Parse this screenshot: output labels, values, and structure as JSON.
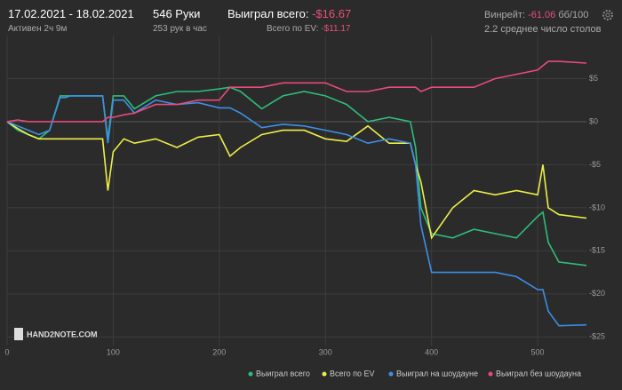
{
  "header": {
    "dates": "17.02.2021 - 18.02.2021",
    "active": "Активен 2ч 9м",
    "hands": "546 Руки",
    "hands_rate": "253 рук в час",
    "won_label": "Выиграл всего:",
    "won_value": "-$16.67",
    "ev_label": "Всего по EV:",
    "ev_value": "-$11.17",
    "winrate_label": "Винрейт:",
    "winrate_value": "-61.06",
    "winrate_unit": "бб/100",
    "tables": "2.2 среднее число столов"
  },
  "chart_data": {
    "type": "line",
    "watermark": "HAND2NOTE.COM",
    "x": [
      0,
      10,
      20,
      30,
      40,
      50,
      55,
      60,
      70,
      80,
      90,
      95,
      100,
      110,
      120,
      140,
      160,
      180,
      200,
      210,
      220,
      240,
      260,
      280,
      300,
      320,
      340,
      360,
      380,
      385,
      390,
      400,
      420,
      440,
      460,
      480,
      500,
      505,
      510,
      520,
      546
    ],
    "series": [
      {
        "name": "Выиграл всего",
        "color": "#2ebd7a",
        "values": [
          0,
          -1,
          -1.5,
          -2,
          -1,
          3,
          3,
          3,
          3,
          3,
          3,
          -2,
          3,
          3,
          1.5,
          3,
          3.5,
          3.5,
          3.8,
          4,
          3.5,
          1.5,
          3,
          3.5,
          3,
          2,
          0,
          0.5,
          0,
          -3,
          -10,
          -13,
          -13.5,
          -12.5,
          -13,
          -13.5,
          -11,
          -10.5,
          -14,
          -16.3,
          -16.7
        ]
      },
      {
        "name": "Всего по EV",
        "color": "#eeee48",
        "values": [
          0,
          -0.8,
          -1.5,
          -2,
          -2,
          -2,
          -2,
          -2,
          -2,
          -2,
          -2,
          -8,
          -3.5,
          -2,
          -2.5,
          -2,
          -3,
          -1.8,
          -1.5,
          -4,
          -3,
          -1.5,
          -1,
          -1,
          -2,
          -2.3,
          -0.5,
          -2.5,
          -2.5,
          -5,
          -7,
          -13.5,
          -10,
          -8,
          -8.5,
          -8,
          -8.5,
          -5,
          -10,
          -10.8,
          -11.2
        ]
      },
      {
        "name": "Выиграл на шоудауне",
        "color": "#3c8fe8",
        "values": [
          0,
          -0.5,
          -1,
          -1.5,
          -1,
          2.8,
          2.8,
          3,
          3,
          3,
          3,
          -2.5,
          2.5,
          2.5,
          1,
          2.5,
          2,
          2.2,
          1.6,
          1.6,
          1,
          -0.7,
          -0.3,
          -0.5,
          -1,
          -1.5,
          -2.5,
          -2,
          -2.5,
          -5,
          -12,
          -17.5,
          -17.5,
          -17.5,
          -17.5,
          -18,
          -19.5,
          -19.5,
          -22,
          -23.7,
          -23.6
        ]
      },
      {
        "name": "Выиграл без шоудауна",
        "color": "#e84a7a",
        "values": [
          0,
          0.2,
          0,
          0,
          0,
          0,
          0,
          0,
          0,
          0,
          0,
          0.5,
          0.5,
          0.8,
          1,
          2,
          2,
          2.5,
          2.5,
          4,
          4,
          4,
          4.5,
          4.5,
          4.5,
          3.5,
          3.5,
          4,
          4,
          4,
          3.5,
          4,
          4,
          4,
          5,
          5.5,
          6,
          6.5,
          7,
          7,
          6.8
        ]
      }
    ],
    "xlim": [
      0,
      546
    ],
    "xticks": [
      0,
      100,
      200,
      300,
      400,
      500
    ],
    "ylim": [
      -26,
      10
    ],
    "yticks": [
      {
        "value": 5,
        "label": "$5"
      },
      {
        "value": 0,
        "label": "$0"
      },
      {
        "value": -5,
        "label": "-$5"
      },
      {
        "value": -10,
        "label": "-$10"
      },
      {
        "value": -15,
        "label": "-$15"
      },
      {
        "value": -20,
        "label": "-$20"
      },
      {
        "value": -25,
        "label": "-$25"
      }
    ],
    "grid": true
  }
}
